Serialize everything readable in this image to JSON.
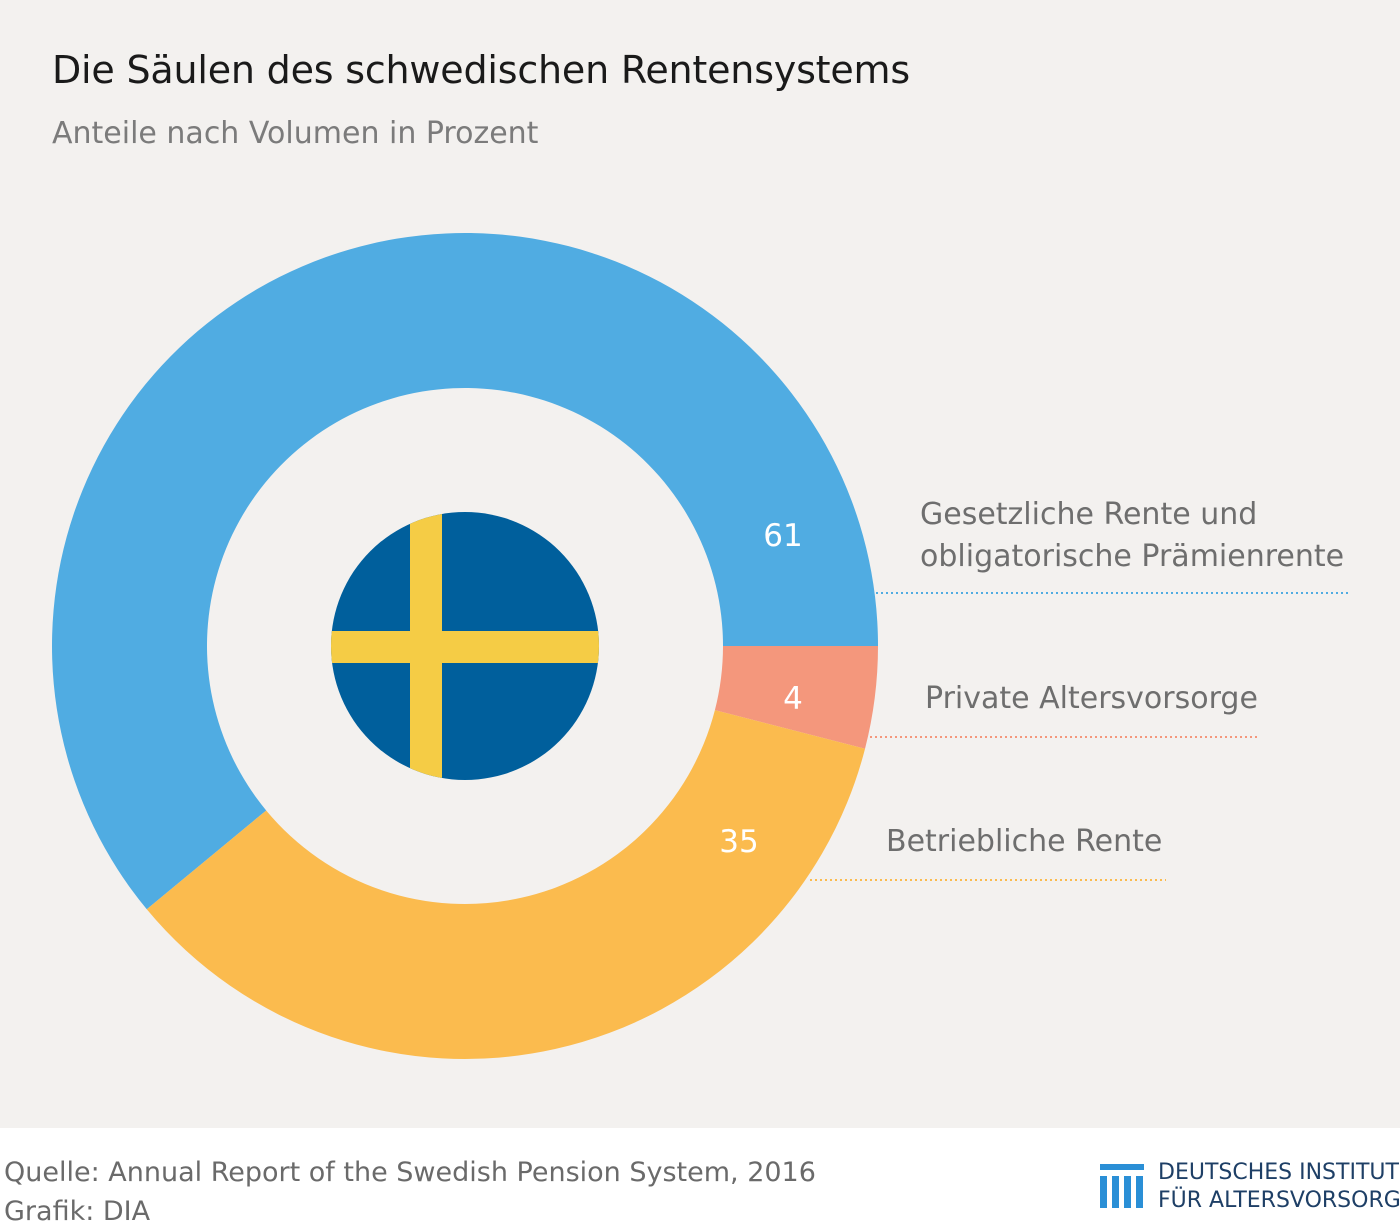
{
  "title": "Die Säulen des schwedischen Rentensystems",
  "subtitle": "Anteile nach Volumen in Prozent",
  "chart_data": {
    "type": "pie",
    "variant": "donut",
    "title": "Die Säulen des schwedischen Rentensystems",
    "subtitle": "Anteile nach Volumen in Prozent",
    "series": [
      {
        "name": "Gesetzliche Rente und obligatorische Prämienrente",
        "label_lines": [
          "Gesetzliche Rente und",
          "obligatorische Prämienrente"
        ],
        "value": 61,
        "color": "#50ace2"
      },
      {
        "name": "Private Altersvorsorge",
        "label_lines": [
          "Private Altersvorsorge"
        ],
        "value": 4,
        "color": "#f4977c"
      },
      {
        "name": "Betriebliche Rente",
        "label_lines": [
          "Betriebliche Rente"
        ],
        "value": 35,
        "color": "#fbbb4e"
      }
    ],
    "center_icon": "swedish-flag-icon",
    "flag_colors": {
      "blue": "#005f9c",
      "yellow": "#f5cc45"
    }
  },
  "footer": {
    "source": "Quelle: Annual Report of the Swedish Pension System, 2016",
    "credit": "Grafik: DIA"
  },
  "logo": {
    "icon": "institute-columns-icon",
    "line1": "DEUTSCHES INSTITUT",
    "line2": "FÜR ALTERSVORSORGE",
    "color": "#1e3f66",
    "accent": "#2a8fd6"
  }
}
